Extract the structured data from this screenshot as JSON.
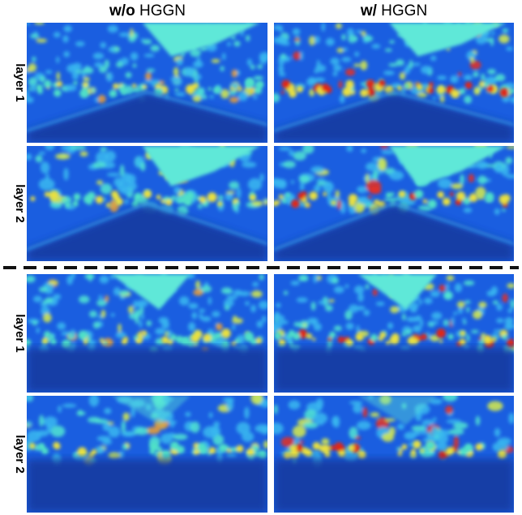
{
  "columns": [
    {
      "prefix": "w/o",
      "label": "HGGN"
    },
    {
      "prefix": "w/",
      "label": "HGGN"
    }
  ],
  "groups": [
    {
      "rows": [
        "layer 1",
        "layer 2"
      ]
    },
    {
      "rows": [
        "layer 1",
        "layer 2"
      ]
    }
  ]
}
